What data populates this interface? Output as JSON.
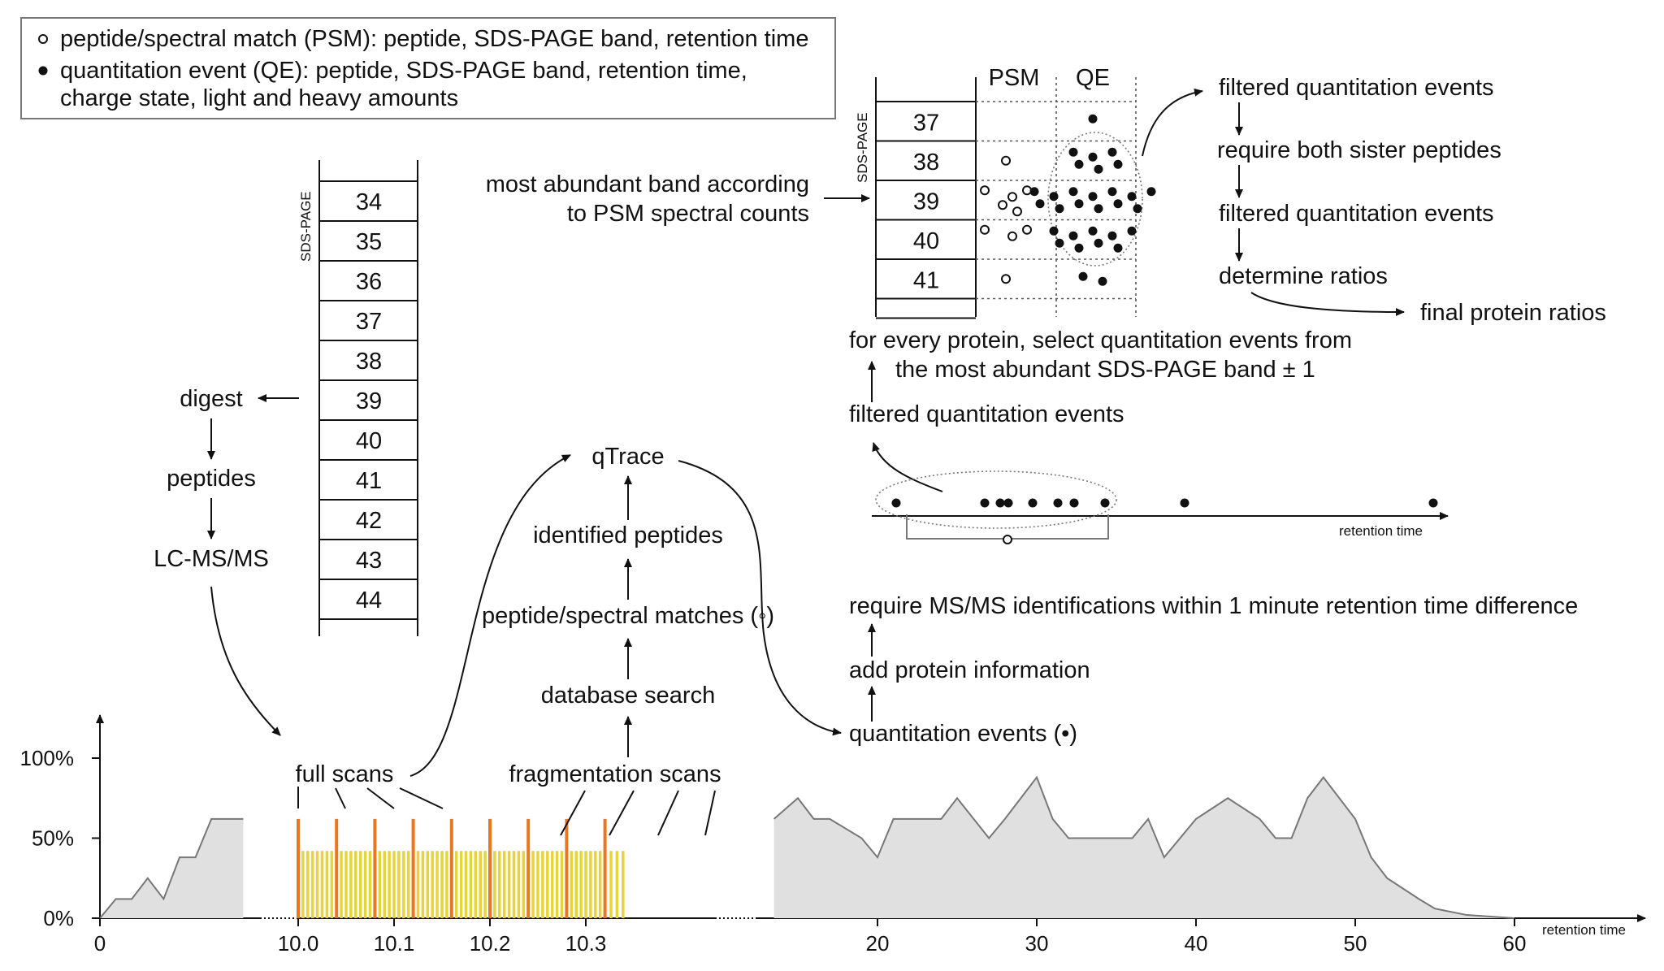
{
  "legend": {
    "psm_line": "peptide/spectral match (PSM): peptide, SDS-PAGE band, retention time",
    "qe_line1": "quantitation event (QE): peptide, SDS-PAGE band, retention time,",
    "qe_line2": "charge state, light and heavy amounts"
  },
  "gel_left": {
    "axis_label": "SDS-PAGE",
    "bands": [
      "34",
      "35",
      "36",
      "37",
      "38",
      "39",
      "40",
      "41",
      "42",
      "43",
      "44"
    ]
  },
  "workflow_left": {
    "digest": "digest",
    "peptides": "peptides",
    "lcms": "LC-MS/MS"
  },
  "workflow_center": {
    "qtrace": "qTrace",
    "identified": "identified peptides",
    "psm": "peptide/spectral matches (◦)",
    "db_search": "database search",
    "frag_scans": "fragmentation scans",
    "full_scans": "full scans"
  },
  "gel_right": {
    "axis_label": "SDS-PAGE",
    "col_psm": "PSM",
    "col_qe": "QE",
    "bands": [
      "37",
      "38",
      "39",
      "40",
      "41"
    ],
    "psm_counts": [
      0,
      1,
      5,
      3,
      1
    ],
    "qe_counts": [
      1,
      6,
      13,
      9,
      2
    ]
  },
  "band_note": {
    "line1": "most abundant band according",
    "line2": "to PSM spectral counts"
  },
  "filter_chain": {
    "step1": "filtered quantitation events",
    "step2": "require both sister peptides",
    "step3": "filtered quantitation events",
    "step4": "determine ratios",
    "result": "final protein ratios"
  },
  "right_flow": {
    "select_line1": "for every protein, select quantitation events from",
    "select_line2": "the most abundant SDS-PAGE band ± 1",
    "filtered": "filtered quantitation events",
    "retention_label": "retention time",
    "require_msms": "require MS/MS identifications within 1 minute retention time difference",
    "add_protein": "add protein information",
    "quant_events": "quantitation events (•)"
  },
  "chart_data": {
    "type": "area",
    "xlabel": "retention time",
    "y_ticks": [
      "100%",
      "50%",
      "0%"
    ],
    "x_ticks_left": [
      "0"
    ],
    "x_ticks_zoom": [
      "10.0",
      "10.1",
      "10.2",
      "10.3"
    ],
    "x_ticks_right": [
      "20",
      "30",
      "40",
      "50",
      "60"
    ],
    "zoom_range": [
      10.0,
      10.35
    ],
    "full_scan_times": [
      10.0,
      10.04,
      10.08,
      10.12,
      10.16,
      10.2,
      10.24,
      10.28,
      10.32
    ],
    "full_scan_level": 0.62,
    "frag_scan_level": 0.42,
    "frag_per_gap": 7,
    "left_series": {
      "x": [
        0,
        1,
        2,
        3,
        4,
        5,
        6,
        7,
        8,
        9
      ],
      "y": [
        0,
        0.12,
        0.12,
        0.25,
        0.12,
        0.38,
        0.38,
        0.62,
        0.62,
        0.62
      ]
    },
    "right_series": {
      "x": [
        13.5,
        15,
        16,
        17,
        19,
        20,
        21,
        22,
        24,
        25,
        27,
        28,
        30,
        31,
        32,
        34,
        36,
        37,
        38,
        40,
        42,
        44,
        45,
        46,
        47,
        48,
        50,
        51,
        52,
        54,
        55,
        57,
        60
      ],
      "y": [
        0.62,
        0.75,
        0.62,
        0.62,
        0.5,
        0.38,
        0.62,
        0.62,
        0.62,
        0.75,
        0.5,
        0.62,
        0.88,
        0.62,
        0.5,
        0.5,
        0.5,
        0.62,
        0.38,
        0.62,
        0.75,
        0.62,
        0.5,
        0.5,
        0.75,
        0.88,
        0.62,
        0.38,
        0.25,
        0.12,
        0.06,
        0.02,
        0
      ]
    }
  },
  "colors": {
    "area_fill": "#e0e0e0",
    "area_stroke": "#777777",
    "full_scan": "#e87722",
    "frag_scan": "#e6d53a",
    "ink": "#111111"
  }
}
